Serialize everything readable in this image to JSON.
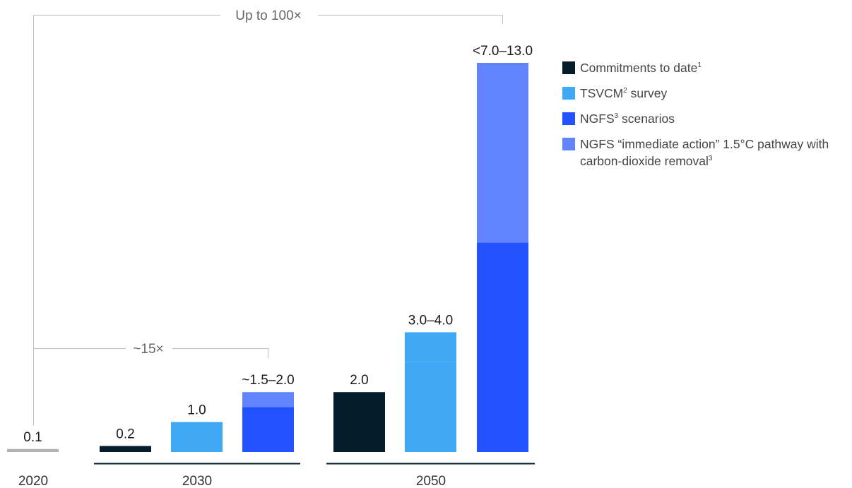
{
  "chart_data": {
    "type": "bar",
    "groups": [
      {
        "label": "2020",
        "bars": [
          {
            "series": "baseline",
            "value": 0.1,
            "label": "0.1"
          }
        ]
      },
      {
        "label": "2030",
        "bars": [
          {
            "series": "commitments",
            "value": 0.2,
            "label": "0.2"
          },
          {
            "series": "tsvcm",
            "value": 1.0,
            "label": "1.0"
          },
          {
            "series": "ngfs",
            "value": 1.5,
            "upper_series": "ngfs_cdr",
            "upper_value": 2.0,
            "label": "~1.5–2.0"
          }
        ]
      },
      {
        "label": "2050",
        "bars": [
          {
            "series": "commitments",
            "value": 2.0,
            "label": "2.0"
          },
          {
            "series": "tsvcm",
            "value": 3.0,
            "upper_series": "tsvcm",
            "upper_value": 4.0,
            "label": "3.0–4.0"
          },
          {
            "series": "ngfs",
            "value": 7.0,
            "upper_series": "ngfs_cdr",
            "upper_value": 13.0,
            "label": "<7.0–13.0"
          }
        ]
      }
    ],
    "series": [
      {
        "key": "commitments",
        "name": "Commitments to date",
        "sup": "1",
        "color": "#051c2c"
      },
      {
        "key": "tsvcm",
        "name": "TSVCM",
        "name_after": " survey",
        "sup": "2",
        "color": "#3fa9f5"
      },
      {
        "key": "ngfs",
        "name": "NGFS",
        "name_after": " scenarios",
        "sup": "3",
        "color": "#2251ff"
      },
      {
        "key": "ngfs_cdr",
        "name": "NGFS “immediate action” 1.5°C pathway with carbon-dioxide removal",
        "sup": "3",
        "color": "#6284ff"
      }
    ],
    "baseline_color": "#b3b3b3",
    "annotations": [
      {
        "text": "~15×",
        "from": "2020",
        "to": "2030"
      },
      {
        "text": "Up to 100×",
        "from": "2020",
        "to": "2050"
      }
    ],
    "ylim": [
      0,
      13.0
    ],
    "grid": false,
    "legend_position": "top-right",
    "xlabel": "",
    "ylabel": ""
  }
}
